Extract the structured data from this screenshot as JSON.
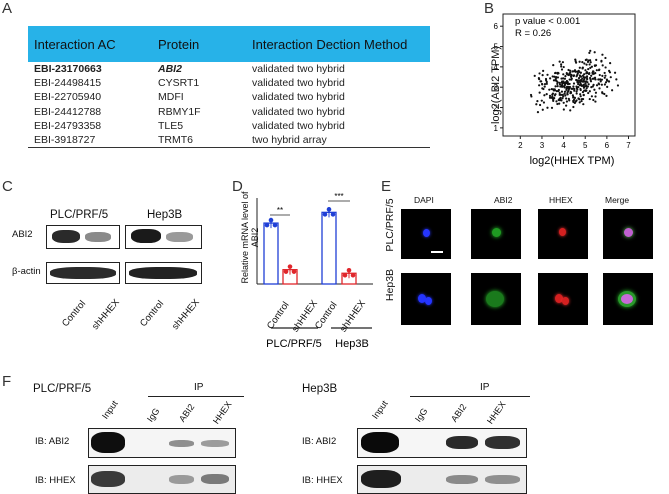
{
  "panels": {
    "a": "A",
    "b": "B",
    "c": "C",
    "d": "D",
    "e": "E",
    "f": "F"
  },
  "table": {
    "headers": [
      "Interaction AC",
      "Protein",
      "Interaction Dection Method"
    ],
    "rows": [
      [
        "EBI-23170663",
        "ABI2",
        "validated two hybrid"
      ],
      [
        "EBI-24498415",
        "CYSRT1",
        "validated two hybrid"
      ],
      [
        "EBI-22705940",
        "MDFI",
        "validated two hybrid"
      ],
      [
        "EBI-24412788",
        "RBMY1F",
        "validated two hybrid"
      ],
      [
        "EBI-24793358",
        "TLE5",
        "validated two hybrid"
      ],
      [
        "EBI-3918727",
        "TRMT6",
        "two hybrid array"
      ]
    ]
  },
  "scatter": {
    "annotation_p": "p value < 0.001",
    "annotation_r": "R = 0.26",
    "xlabel": "log2(HHEX TPM)",
    "ylabel": "log2(ABI2 TPM)",
    "xticks": [
      "2",
      "3",
      "4",
      "5",
      "6",
      "7"
    ],
    "yticks": [
      "1",
      "2",
      "3",
      "4",
      "5",
      "6"
    ]
  },
  "westernC": {
    "cell1": "PLC/PRF/5",
    "cell2": "Hep3B",
    "row1": "ABI2",
    "row2": "β-actin",
    "lanes": [
      "Control",
      "shHHEX",
      "Control",
      "shHHEX"
    ]
  },
  "chart_data": {
    "type": "bar",
    "ylabel": "Relative mRNA level of ABI2",
    "categories": [
      "Control",
      "shHHEX",
      "Control",
      "shHHEX"
    ],
    "groups": [
      "PLC/PRF/5",
      "Hep3B"
    ],
    "values": [
      0.85,
      0.2,
      1.0,
      0.15
    ],
    "ylim": [
      0,
      1.2
    ],
    "significance": [
      "**",
      "***"
    ],
    "colors": [
      "#1f3fd6",
      "#e0262b",
      "#1f3fd6",
      "#e0262b"
    ]
  },
  "if": {
    "columns": [
      "DAPI",
      "ABI2",
      "HHEX",
      "Merge"
    ],
    "rows": [
      "PLC/PRF/5",
      "Hep3B"
    ]
  },
  "ipF": {
    "left_title": "PLC/PRF/5",
    "right_title": "Hep3B",
    "ip_label": "IP",
    "lanes": [
      "Input",
      "IgG",
      "ABI2",
      "HHEX"
    ],
    "row1": "IB: ABI2",
    "row2": "IB: HHEX"
  }
}
